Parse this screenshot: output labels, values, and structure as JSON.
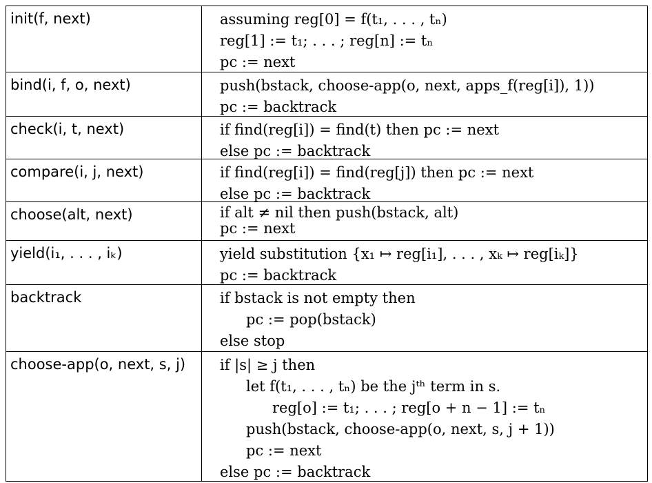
{
  "rows": [
    {
      "left": "init(f, next)",
      "lines": [
        "assuming reg[0] = f(t₁, . . . , tₙ)",
        "reg[1] := t₁; . . . ; reg[n] := tₙ",
        "pc := next"
      ]
    },
    {
      "left": "bind(i, f, o, next)",
      "lines": [
        "push(bstack, choose-app(o, next, apps_f(reg[i]), 1))",
        "pc := backtrack"
      ]
    },
    {
      "left": "check(i, t, next)",
      "lines": [
        "if find(reg[i]) = find(t) then pc := next",
        "else pc := backtrack"
      ]
    },
    {
      "left": "compare(i, j, next)",
      "lines": [
        "if find(reg[i]) = find(reg[j]) then pc := next",
        "else pc := backtrack"
      ]
    },
    {
      "left": "choose(alt, next)",
      "lines": [
        "if alt ≠ nil then push(bstack, alt)",
        "pc := next"
      ]
    },
    {
      "left": "yield(i₁, . . . , iₖ)",
      "lines": [
        "yield substitution {x₁ ↦ reg[i₁], . . . , xₖ ↦ reg[iₖ]}",
        "pc := backtrack"
      ]
    },
    {
      "left": "backtrack",
      "lines": [
        "if bstack is not empty then",
        "pc := pop(bstack)",
        "else stop"
      ]
    },
    {
      "left": "choose-app(o, next, s, j)",
      "lines": [
        "if |s| ≥ j then",
        "let f(t₁, . . . , tₙ) be the jᵗʰ term in s.",
        "reg[o] := t₁; . . . ; reg[o + n − 1] := tₙ",
        "push(bstack, choose-app(o, next, s, j + 1))",
        "pc := next",
        "else pc := backtrack"
      ]
    }
  ]
}
